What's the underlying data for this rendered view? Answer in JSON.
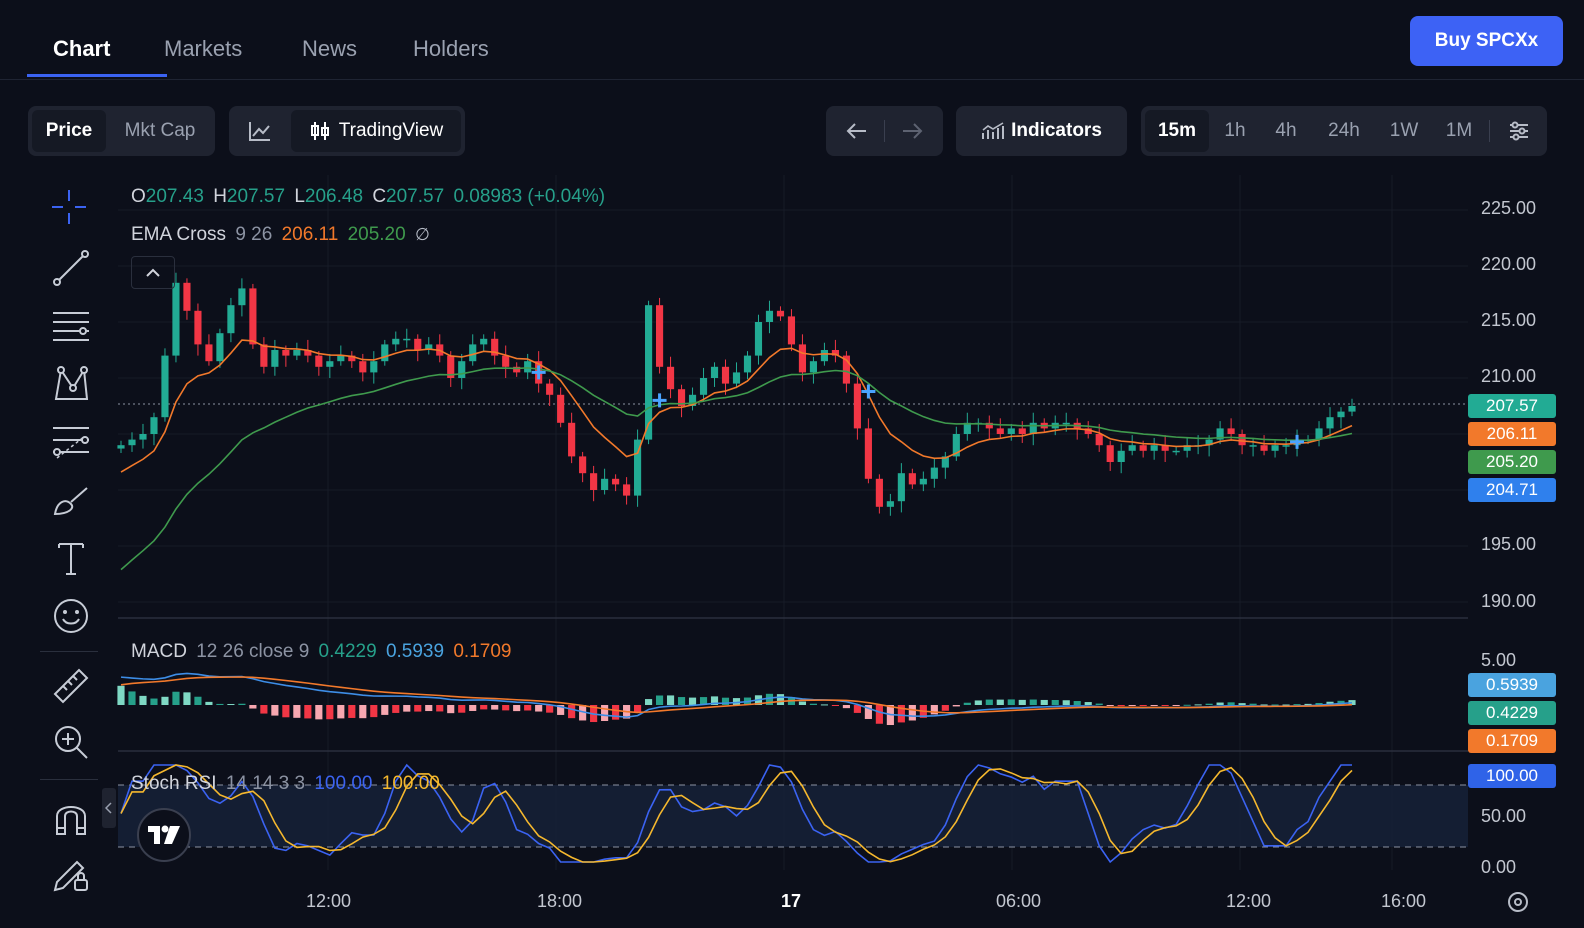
{
  "tabs": [
    {
      "label": "Chart",
      "active": true
    },
    {
      "label": "Markets",
      "active": false
    },
    {
      "label": "News",
      "active": false
    },
    {
      "label": "Holders",
      "active": false
    }
  ],
  "buy_button": "Buy SPCXx",
  "toolbar": {
    "price_toggle": [
      "Price",
      "Mkt Cap"
    ],
    "chart_library": "TradingView",
    "indicators": "Indicators",
    "timeframes": [
      "15m",
      "1h",
      "4h",
      "24h",
      "1W",
      "1M"
    ],
    "active_timeframe": "15m"
  },
  "legend": {
    "ohlc": {
      "o_label": "O",
      "o": "207.43",
      "h_label": "H",
      "h": "207.57",
      "l_label": "L",
      "l": "206.48",
      "c_label": "C",
      "c": "207.57",
      "change": "0.08983 (+0.04%)"
    },
    "ema": {
      "name": "EMA Cross",
      "params": "9 26",
      "fast": "206.11",
      "slow": "205.20"
    },
    "macd": {
      "name": "MACD",
      "params": "12 26 close 9",
      "v1": "0.4229",
      "v2": "0.5939",
      "v3": "0.1709"
    },
    "stoch": {
      "name": "Stoch RSI",
      "params": "14 14 3 3",
      "k": "100.00",
      "d": "100.00"
    }
  },
  "price_axis": [
    "225.00",
    "220.00",
    "215.00",
    "210.00",
    "195.00",
    "190.00"
  ],
  "price_tags": [
    {
      "value": "207.57",
      "color": "#22ab94"
    },
    {
      "value": "206.11",
      "color": "#f2792b"
    },
    {
      "value": "205.20",
      "color": "#3f9a4d"
    },
    {
      "value": "204.71",
      "color": "#2f80ed"
    }
  ],
  "macd_axis": [
    "5.00"
  ],
  "macd_tags": [
    {
      "value": "0.5939",
      "color": "#4aa3df"
    },
    {
      "value": "0.4229",
      "color": "#26a08a"
    },
    {
      "value": "0.1709",
      "color": "#f2792b"
    }
  ],
  "stoch_axis": [
    "50.00",
    "0.00"
  ],
  "stoch_tag": {
    "value": "100.00",
    "color": "#2f63e8"
  },
  "time_axis": [
    "12:00",
    "18:00",
    "17",
    "06:00",
    "12:00",
    "16:00"
  ],
  "colors": {
    "up": "#22ab94",
    "down": "#f23645",
    "ema_fast": "#f2792b",
    "ema_slow": "#3f9a4d",
    "accent": "#3d62f5"
  },
  "chart_data": {
    "type": "candlestick",
    "timeframe": "15m",
    "ohlc_close": [
      204.0,
      204.5,
      205.0,
      206.5,
      212.0,
      218.5,
      216.0,
      213.0,
      211.5,
      214.0,
      216.5,
      218.0,
      213.0,
      211.0,
      212.5,
      212.0,
      212.5,
      212.0,
      211.0,
      211.5,
      212.0,
      211.5,
      210.5,
      211.5,
      213.0,
      213.5,
      213.5,
      212.5,
      213.0,
      212.0,
      210.0,
      211.5,
      213.0,
      213.5,
      212.0,
      211.0,
      210.5,
      211.5,
      209.5,
      208.5,
      206.0,
      203.0,
      201.5,
      200.0,
      201.0,
      200.5,
      199.5,
      204.5,
      216.5,
      211.0,
      209.0,
      207.5,
      208.5,
      210.0,
      211.0,
      209.5,
      210.5,
      212.0,
      215.0,
      216.0,
      215.5,
      213.0,
      210.5,
      211.5,
      212.5,
      212.0,
      209.5,
      205.5,
      201.0,
      198.5,
      199.0,
      201.5,
      200.5,
      201.0,
      202.0,
      203.0,
      205.0,
      206.0,
      206.0,
      205.5,
      205.0,
      205.5,
      205.0,
      206.0,
      205.5,
      206.0,
      206.0,
      205.5,
      205.0,
      204.0,
      202.5,
      203.5,
      204.0,
      203.5,
      204.0,
      203.5,
      203.5,
      204.0,
      204.0,
      204.5,
      205.5,
      205.0,
      204.0,
      204.0,
      203.5,
      204.0,
      204.0,
      204.5,
      204.5,
      205.5,
      206.5,
      207.0,
      207.5
    ]
  }
}
